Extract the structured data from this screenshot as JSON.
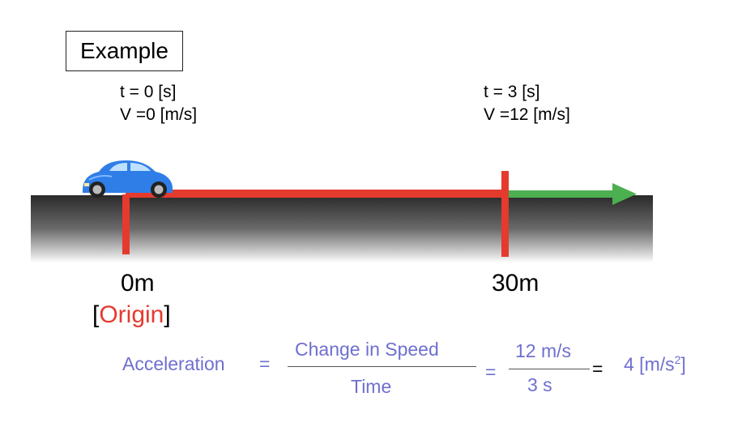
{
  "example_label": "Example",
  "start_state": {
    "time": "t = 0 [s]",
    "velocity": "V =0 [m/s]"
  },
  "end_state": {
    "time": "t = 3 [s]",
    "velocity": "V =12 [m/s]"
  },
  "markers": {
    "start": "0m",
    "end": "30m"
  },
  "origin": {
    "open": "[",
    "word": "Origin",
    "close": "]"
  },
  "colors": {
    "distance_line": "#e53a2e",
    "arrow": "#4caf50",
    "formula": "#6f6fd0",
    "car": "#2f7ee8"
  },
  "formula": {
    "lhs": "Acceleration",
    "eq1": "=",
    "numerator": "Change in Speed",
    "denominator": "Time",
    "eq2": "=",
    "num2": "12 m/s",
    "den2": "3 s",
    "eq3": "=",
    "result": "4 [m/s",
    "result_exp": "2",
    "result_close": "]"
  }
}
